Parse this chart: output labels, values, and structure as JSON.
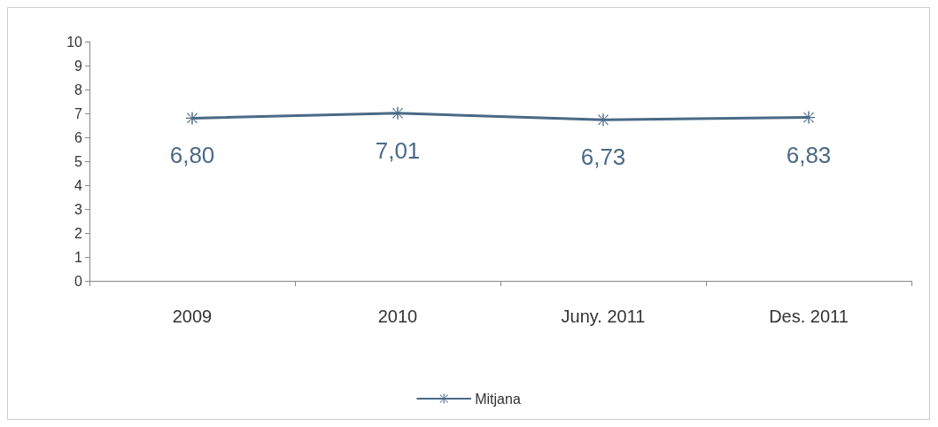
{
  "chart_data": {
    "type": "line",
    "categories": [
      "2009",
      "2010",
      "Juny. 2011",
      "Des. 2011"
    ],
    "series": [
      {
        "name": "Mitjana",
        "color": "#4a6a86",
        "values": [
          6.8,
          7.01,
          6.73,
          6.83
        ],
        "value_labels": [
          "6,80",
          "7,01",
          "6,73",
          "6,83"
        ]
      }
    ],
    "ylim": [
      0,
      10
    ],
    "yticks": [
      0,
      1,
      2,
      3,
      4,
      5,
      6,
      7,
      8,
      9,
      10
    ],
    "grid": false,
    "legend": "bottom",
    "marker": "cross",
    "line_style": "solid"
  }
}
